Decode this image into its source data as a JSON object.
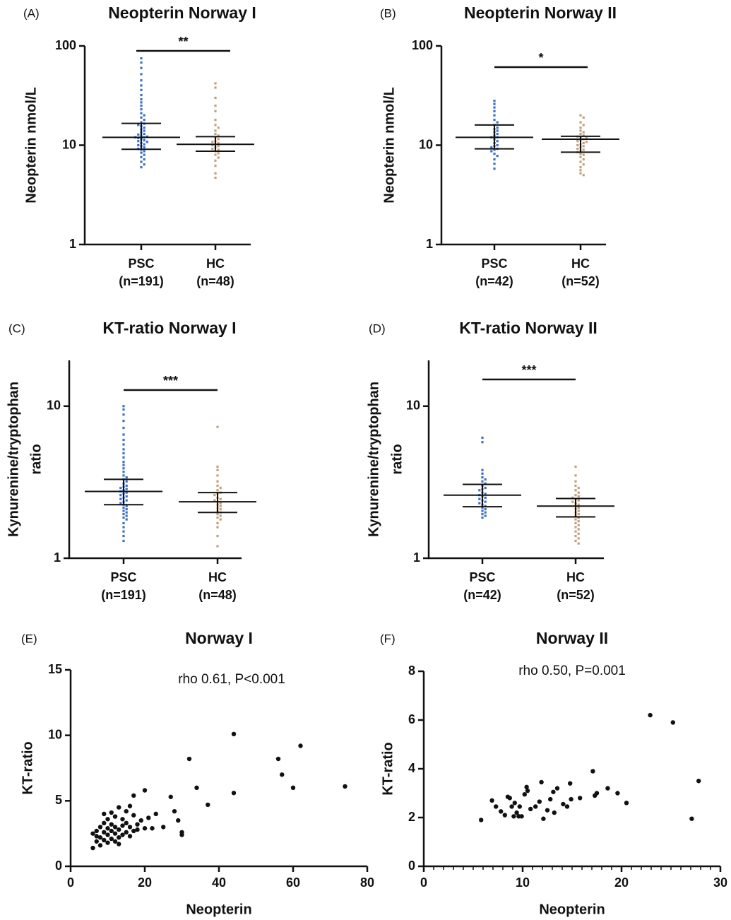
{
  "chart_data": [
    {
      "type": "strip",
      "panel_label": "(A)",
      "title": "Neopterin Norway I",
      "ylabel": "Neopterin nmol/L",
      "log_scale": true,
      "ylim": [
        1,
        100
      ],
      "yticks": [
        1,
        10,
        100
      ],
      "significance": "**",
      "groups": [
        {
          "category": "PSC",
          "count_label": "(n=191)",
          "color": "#3f70c2",
          "median": 12,
          "q1": 9.1,
          "q3": 16.6,
          "values": [
            75,
            68,
            60,
            52,
            45,
            40,
            36,
            32,
            29,
            27,
            25,
            23,
            21,
            20,
            19,
            18,
            17,
            16.5,
            16,
            15.5,
            15,
            14.5,
            14,
            13.5,
            13,
            12.8,
            12.5,
            12.2,
            12,
            12,
            11.8,
            11.5,
            11.2,
            11,
            10.8,
            10.5,
            10.2,
            10,
            9.8,
            9.5,
            9.2,
            9,
            8.7,
            8.4,
            8,
            7.6,
            7.2,
            6.8,
            6.4,
            6
          ]
        },
        {
          "category": "HC",
          "count_label": "(n=48)",
          "color": "#c2a07e",
          "median": 10.2,
          "q1": 8.7,
          "q3": 12.2,
          "values": [
            42,
            38,
            30,
            25,
            22,
            18,
            16,
            15,
            14,
            13,
            12.5,
            12,
            11.5,
            11,
            10.8,
            10.5,
            10.2,
            10,
            9.8,
            9.5,
            9.2,
            9,
            8.7,
            8.3,
            8,
            7.5,
            7,
            6.2,
            5.2,
            4.7
          ]
        }
      ]
    },
    {
      "type": "strip",
      "panel_label": "(B)",
      "title": "Neopterin Norway II",
      "ylabel": "Neopterin nmol/L",
      "log_scale": true,
      "ylim": [
        1,
        100
      ],
      "yticks": [
        1,
        10,
        100
      ],
      "significance": "*",
      "groups": [
        {
          "category": "PSC",
          "count_label": "(n=42)",
          "color": "#3f70c2",
          "median": 12,
          "q1": 9.2,
          "q3": 16,
          "values": [
            28,
            26,
            24,
            22,
            20,
            18,
            17,
            16,
            15,
            14.5,
            14,
            13.5,
            13,
            12.5,
            12,
            12,
            11.5,
            11,
            10.5,
            10,
            9.8,
            9.5,
            9.2,
            9,
            8.7,
            8.2,
            7.8,
            7.2,
            6.5,
            5.8
          ]
        },
        {
          "category": "HC",
          "count_label": "(n=52)",
          "color": "#c2a07e",
          "median": 11.5,
          "q1": 8.5,
          "q3": 12.3,
          "values": [
            20,
            19,
            17,
            16,
            15,
            14,
            13.5,
            13,
            12.5,
            12.2,
            12,
            11.8,
            11.5,
            11.2,
            11,
            10.8,
            10.5,
            10.2,
            10,
            9.8,
            9.5,
            9.2,
            9,
            8.8,
            8.5,
            8.2,
            8,
            7.6,
            7.2,
            6.8,
            6.4,
            6,
            5.6,
            5.2,
            5
          ]
        }
      ]
    },
    {
      "type": "strip",
      "panel_label": "(C)",
      "title": "KT-ratio Norway I",
      "ylabel": [
        "Kynurenine/tryptophan",
        "ratio"
      ],
      "log_scale": true,
      "ylim": [
        1,
        20
      ],
      "yticks": [
        1,
        10
      ],
      "significance": "***",
      "groups": [
        {
          "category": "PSC",
          "count_label": "(n=191)",
          "color": "#3f70c2",
          "median": 2.75,
          "q1": 2.25,
          "q3": 3.3,
          "values": [
            10,
            9.5,
            8.8,
            8,
            7.2,
            6.5,
            6,
            5.6,
            5.2,
            4.9,
            4.6,
            4.3,
            4.1,
            3.9,
            3.7,
            3.5,
            3.4,
            3.3,
            3.2,
            3.1,
            3,
            2.95,
            2.9,
            2.85,
            2.8,
            2.75,
            2.7,
            2.65,
            2.6,
            2.55,
            2.5,
            2.45,
            2.4,
            2.35,
            2.3,
            2.25,
            2.2,
            2.15,
            2.1,
            2.05,
            2,
            1.95,
            1.9,
            1.85,
            1.8,
            1.7,
            1.6,
            1.5,
            1.4,
            1.3
          ]
        },
        {
          "category": "HC",
          "count_label": "(n=48)",
          "color": "#c2a07e",
          "median": 2.35,
          "q1": 2,
          "q3": 2.7,
          "values": [
            7.3,
            4,
            3.8,
            3.5,
            3.2,
            3,
            2.9,
            2.8,
            2.7,
            2.65,
            2.6,
            2.5,
            2.45,
            2.4,
            2.35,
            2.3,
            2.25,
            2.2,
            2.15,
            2.1,
            2.05,
            2,
            1.95,
            1.9,
            1.85,
            1.8,
            1.7,
            1.6,
            1.4,
            1.2
          ]
        }
      ]
    },
    {
      "type": "strip",
      "panel_label": "(D)",
      "title": "KT-ratio Norway II",
      "ylabel": [
        "Kynurenine/tryptophan",
        "ratio"
      ],
      "log_scale": true,
      "ylim": [
        1,
        20
      ],
      "yticks": [
        1,
        10
      ],
      "significance": "***",
      "groups": [
        {
          "category": "PSC",
          "count_label": "(n=42)",
          "color": "#3f70c2",
          "median": 2.6,
          "q1": 2.18,
          "q3": 3.06,
          "values": [
            6.2,
            5.8,
            3.8,
            3.6,
            3.4,
            3.3,
            3.2,
            3.1,
            3,
            2.9,
            2.85,
            2.8,
            2.7,
            2.65,
            2.6,
            2.55,
            2.5,
            2.45,
            2.4,
            2.35,
            2.3,
            2.25,
            2.2,
            2.15,
            2.1,
            2.05,
            2,
            1.95,
            1.9,
            1.85
          ]
        },
        {
          "category": "HC",
          "count_label": "(n=52)",
          "color": "#c2a07e",
          "median": 2.2,
          "q1": 1.87,
          "q3": 2.47,
          "values": [
            4,
            3.5,
            3.2,
            3,
            2.9,
            2.8,
            2.7,
            2.6,
            2.55,
            2.5,
            2.45,
            2.4,
            2.35,
            2.3,
            2.25,
            2.2,
            2.15,
            2.1,
            2.05,
            2,
            1.95,
            1.9,
            1.85,
            1.8,
            1.75,
            1.7,
            1.65,
            1.6,
            1.55,
            1.5,
            1.45,
            1.4,
            1.35,
            1.3,
            1.25
          ]
        }
      ]
    },
    {
      "type": "scatter",
      "panel_label": "(E)",
      "title": "Norway I",
      "xlabel": "Neopterin",
      "ylabel": "KT-ratio",
      "annotation": "rho 0.61, P<0.001",
      "color": "#111111",
      "xlim": [
        0,
        80
      ],
      "xticks": [
        0,
        20,
        40,
        60,
        80
      ],
      "ylim": [
        0,
        15
      ],
      "yticks": [
        0,
        5,
        10,
        15
      ],
      "x": [
        44,
        62,
        56,
        57,
        60,
        74,
        32,
        44,
        34,
        37,
        27,
        20,
        17,
        30,
        30,
        29,
        25,
        23,
        22,
        28,
        6,
        6,
        7,
        7,
        8,
        8,
        8,
        9,
        9,
        9,
        10,
        10,
        10,
        10,
        11,
        11,
        11,
        11,
        12,
        12,
        12,
        12,
        13,
        13,
        13,
        14,
        14,
        14,
        15,
        15,
        15,
        16,
        16,
        17,
        17,
        18,
        18,
        19,
        20,
        21,
        16,
        9,
        7,
        13
      ],
      "y": [
        10.1,
        9.2,
        8.2,
        7,
        6,
        6.1,
        8.2,
        5.6,
        6,
        4.7,
        5.3,
        5.8,
        5.4,
        2.4,
        2.6,
        3.5,
        3,
        4,
        2.9,
        4.2,
        1.4,
        2.5,
        1.9,
        2.7,
        2.2,
        1.6,
        3,
        2,
        2.6,
        3.3,
        1.8,
        2.4,
        2.9,
        3.6,
        2.1,
        2.7,
        3.2,
        4.1,
        1.9,
        2.5,
        3,
        3.8,
        2.2,
        2.8,
        4.5,
        2.4,
        3.1,
        3.6,
        2.6,
        3.3,
        4.2,
        2.3,
        3,
        2.7,
        3.9,
        3.2,
        2.8,
        3.5,
        2.9,
        3.7,
        4.6,
        4,
        2.3,
        1.7
      ]
    },
    {
      "type": "scatter",
      "panel_label": "(F)",
      "title": "Norway II",
      "xlabel": "Neopterin",
      "ylabel": "KT-ratio",
      "annotation": "rho 0.50, P=0.001",
      "color": "#111111",
      "minor_tick_step": 1,
      "xlim": [
        0,
        30
      ],
      "xticks": [
        0,
        10,
        20,
        30
      ],
      "ylim": [
        0,
        8
      ],
      "yticks": [
        0,
        2,
        4,
        6,
        8
      ],
      "x": [
        5.8,
        6.9,
        7.3,
        7.8,
        8.2,
        8.5,
        8.7,
        8.9,
        9.1,
        9.2,
        9.4,
        9.6,
        9.7,
        9.9,
        10.2,
        10.4,
        10.5,
        10.8,
        11.3,
        11.7,
        11.9,
        12.1,
        12.5,
        12.8,
        13.1,
        13.2,
        13.5,
        14.1,
        14.5,
        14.8,
        14.9,
        15.8,
        17.1,
        17.3,
        17.5,
        18.6,
        19.6,
        20.5,
        22.9,
        25.2,
        27.1,
        27.8
      ],
      "y": [
        1.9,
        2.7,
        2.45,
        2.25,
        2.1,
        2.85,
        2.8,
        2.45,
        2.05,
        2.6,
        2.2,
        2.05,
        2.45,
        2.05,
        2.95,
        3.25,
        3.1,
        2.35,
        2.45,
        2.65,
        3.45,
        1.95,
        2.3,
        2.75,
        3.05,
        2.2,
        3.2,
        2.55,
        2.45,
        3.4,
        2.75,
        2.8,
        3.9,
        2.9,
        3,
        3.2,
        3,
        2.6,
        6.2,
        5.9,
        1.95,
        3.5
      ]
    }
  ]
}
